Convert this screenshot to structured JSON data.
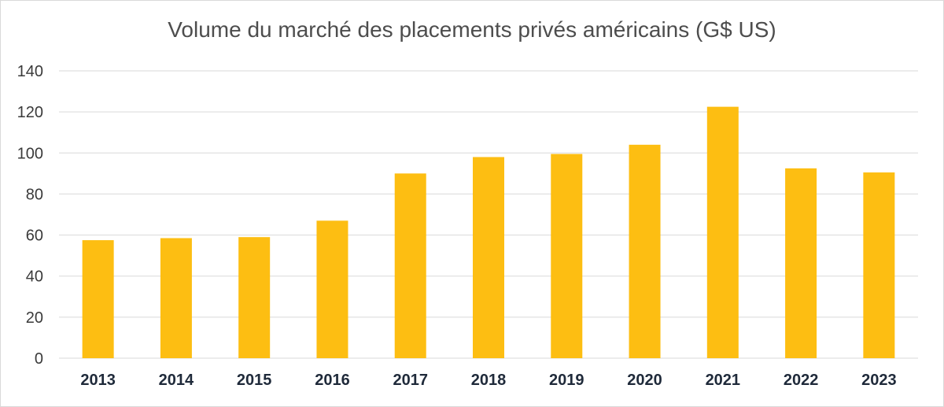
{
  "chart_data": {
    "type": "bar",
    "title": "Volume du marché des placements privés américains (G$ US)",
    "categories": [
      "2013",
      "2014",
      "2015",
      "2016",
      "2017",
      "2018",
      "2019",
      "2020",
      "2021",
      "2022",
      "2023"
    ],
    "values": [
      57.5,
      58.5,
      59,
      67,
      90,
      98,
      99.5,
      104,
      122.5,
      92.5,
      90.5
    ],
    "ylim": [
      0,
      140
    ],
    "yticks": [
      0,
      20,
      40,
      60,
      80,
      100,
      120,
      140
    ],
    "bar_color": "#FDBE12",
    "grid_color": "#d9d9d9",
    "grid": true,
    "legend": "none"
  }
}
